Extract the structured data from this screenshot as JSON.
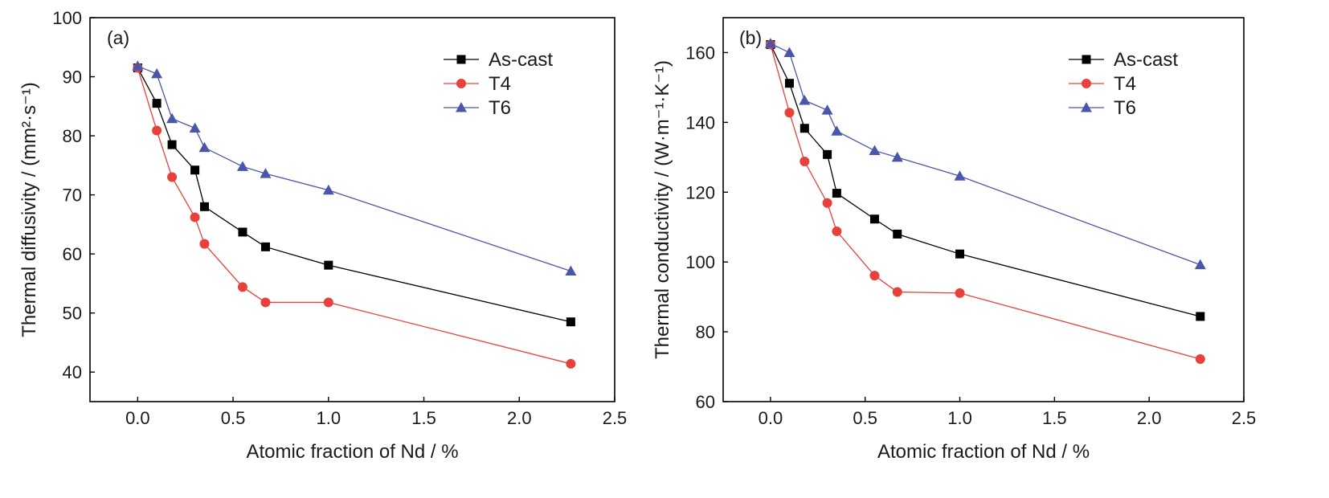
{
  "chart_data": [
    {
      "type": "line",
      "panel_label": "(a)",
      "xlabel": "Atomic fraction of Nd / %",
      "ylabel": "Thermal diffusivity / (mm²·s⁻¹)",
      "xlim": [
        -0.25,
        2.5
      ],
      "ylim": [
        35,
        100
      ],
      "xticks": [
        0.0,
        0.5,
        1.0,
        1.5,
        2.0,
        2.5
      ],
      "xtick_labels": [
        "0.0",
        "0.5",
        "1.0",
        "1.5",
        "2.0",
        "2.5"
      ],
      "yticks": [
        40,
        50,
        60,
        70,
        80,
        90,
        100
      ],
      "ytick_labels": [
        "40",
        "50",
        "60",
        "70",
        "80",
        "90",
        "100"
      ],
      "grid": false,
      "legend_position": "top-right",
      "series": [
        {
          "name": "As-cast",
          "color": "#000000",
          "marker": "square",
          "x": [
            0.0,
            0.1,
            0.18,
            0.3,
            0.35,
            0.55,
            0.67,
            1.0,
            2.27
          ],
          "y": [
            91.5,
            85.5,
            78.5,
            74.2,
            68.0,
            63.7,
            61.2,
            58.1,
            48.5
          ]
        },
        {
          "name": "T4",
          "color": "#e8413b",
          "marker": "circle",
          "x": [
            0.0,
            0.1,
            0.18,
            0.3,
            0.35,
            0.55,
            0.67,
            1.0,
            2.27
          ],
          "y": [
            91.5,
            80.9,
            73.0,
            66.2,
            61.7,
            54.4,
            51.8,
            51.8,
            41.4
          ]
        },
        {
          "name": "T6",
          "color": "#4a56a8",
          "marker": "triangle",
          "x": [
            0.0,
            0.1,
            0.18,
            0.3,
            0.35,
            0.55,
            0.67,
            1.0,
            2.27
          ],
          "y": [
            91.8,
            90.5,
            82.9,
            81.3,
            78.0,
            74.8,
            73.6,
            70.8,
            57.1
          ]
        }
      ]
    },
    {
      "type": "line",
      "panel_label": "(b)",
      "xlabel": "Atomic fraction of Nd / %",
      "ylabel": "Thermal conductivity / (W·m⁻¹·K⁻¹)",
      "xlim": [
        -0.25,
        2.5
      ],
      "ylim": [
        60,
        170
      ],
      "xticks": [
        0.0,
        0.5,
        1.0,
        1.5,
        2.0,
        2.5
      ],
      "xtick_labels": [
        "0.0",
        "0.5",
        "1.0",
        "1.5",
        "2.0",
        "2.5"
      ],
      "yticks": [
        60,
        80,
        100,
        120,
        140,
        160
      ],
      "ytick_labels": [
        "60",
        "80",
        "100",
        "120",
        "140",
        "160"
      ],
      "grid": false,
      "legend_position": "top-right",
      "series": [
        {
          "name": "As-cast",
          "color": "#000000",
          "marker": "square",
          "x": [
            0.0,
            0.1,
            0.18,
            0.3,
            0.35,
            0.55,
            0.67,
            1.0,
            2.27
          ],
          "y": [
            162.3,
            151.2,
            138.3,
            130.8,
            119.7,
            112.3,
            108.0,
            102.3,
            84.4
          ]
        },
        {
          "name": "T4",
          "color": "#e8413b",
          "marker": "circle",
          "x": [
            0.0,
            0.1,
            0.18,
            0.3,
            0.35,
            0.55,
            0.67,
            1.0,
            2.27
          ],
          "y": [
            162.3,
            142.8,
            128.8,
            116.9,
            108.8,
            96.1,
            91.4,
            91.1,
            72.2
          ]
        },
        {
          "name": "T6",
          "color": "#4a56a8",
          "marker": "triangle",
          "x": [
            0.0,
            0.1,
            0.18,
            0.3,
            0.35,
            0.55,
            0.67,
            1.0,
            2.27
          ],
          "y": [
            162.6,
            160.0,
            146.3,
            143.5,
            137.5,
            131.9,
            130.0,
            124.6,
            99.2
          ]
        }
      ]
    }
  ]
}
